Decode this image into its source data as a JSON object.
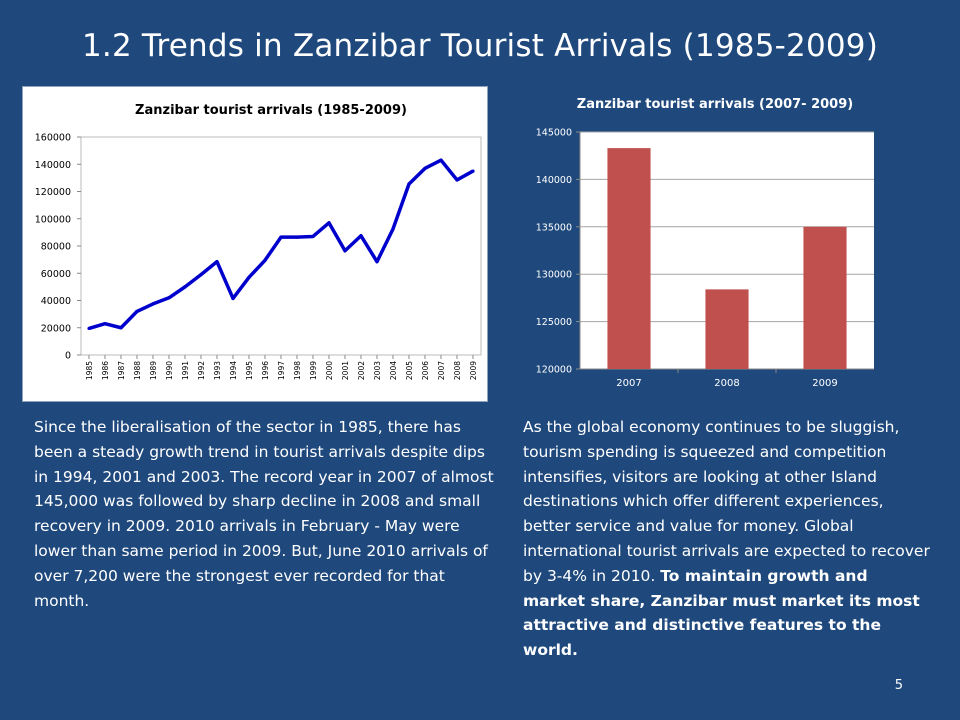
{
  "slide": {
    "title": "1.2 Trends in Zanzibar Tourist Arrivals (1985-2009)",
    "page_number": "5",
    "left_text": "Since the liberalisation of the sector in 1985, there has been a steady growth trend in tourist arrivals despite dips in 1994, 2001 and 2003. The record year in 2007 of almost 145,000 was followed by sharp decline in 2008 and small recovery in 2009. 2010 arrivals in February - May were lower than same period in 2009. But, June 2010 arrivals of over 7,200 were the strongest ever recorded for that month.",
    "right_text_normal": "As the global economy continues to be sluggish, tourism spending is squeezed and competition intensifies, visitors are looking at other Island destinations which offer different experiences, better service and value for money. Global international tourist arrivals are expected to recover by 3-4% in 2010. ",
    "right_text_bold": "To maintain growth and market share, Zanzibar must market its most attractive and distinctive features to the world."
  },
  "chart_data": [
    {
      "type": "line",
      "title": "Zanzibar tourist arrivals (1985-2009)",
      "x": [
        "1985",
        "1986",
        "1987",
        "1988",
        "1989",
        "1990",
        "1991",
        "1992",
        "1993",
        "1994",
        "1995",
        "1996",
        "1997",
        "1998",
        "1999",
        "2000",
        "2001",
        "2002",
        "2003",
        "2004",
        "2005",
        "2006",
        "2007",
        "2008",
        "2009"
      ],
      "series": [
        {
          "values": [
            19500,
            23000,
            20000,
            32000,
            37500,
            42000,
            50000,
            59000,
            68500,
            41500,
            57000,
            69500,
            86500,
            86500,
            87000,
            97000,
            76500,
            87500,
            68500,
            92500,
            125500,
            137000,
            143000,
            128500,
            135000
          ]
        }
      ],
      "ylim": [
        0,
        160000
      ],
      "yticks": [
        0,
        20000,
        40000,
        60000,
        80000,
        100000,
        120000,
        140000,
        160000
      ],
      "ytick_labels": [
        "0",
        "20000",
        "40000",
        "60000",
        "80000",
        "100000",
        "120000",
        "140000",
        "160000"
      ],
      "line_color": "#0000cc",
      "grid": false
    },
    {
      "type": "bar",
      "title": "Zanzibar tourist arrivals  (2007- 2009)",
      "categories": [
        "2007",
        "2008",
        "2009"
      ],
      "values": [
        143300,
        128400,
        135000
      ],
      "ylim": [
        120000,
        145000
      ],
      "yticks": [
        120000,
        125000,
        130000,
        135000,
        140000,
        145000
      ],
      "ytick_labels": [
        "120000",
        "125000",
        "130000",
        "135000",
        "140000",
        "145000"
      ],
      "bar_color": "#c0504d",
      "grid": true
    }
  ]
}
